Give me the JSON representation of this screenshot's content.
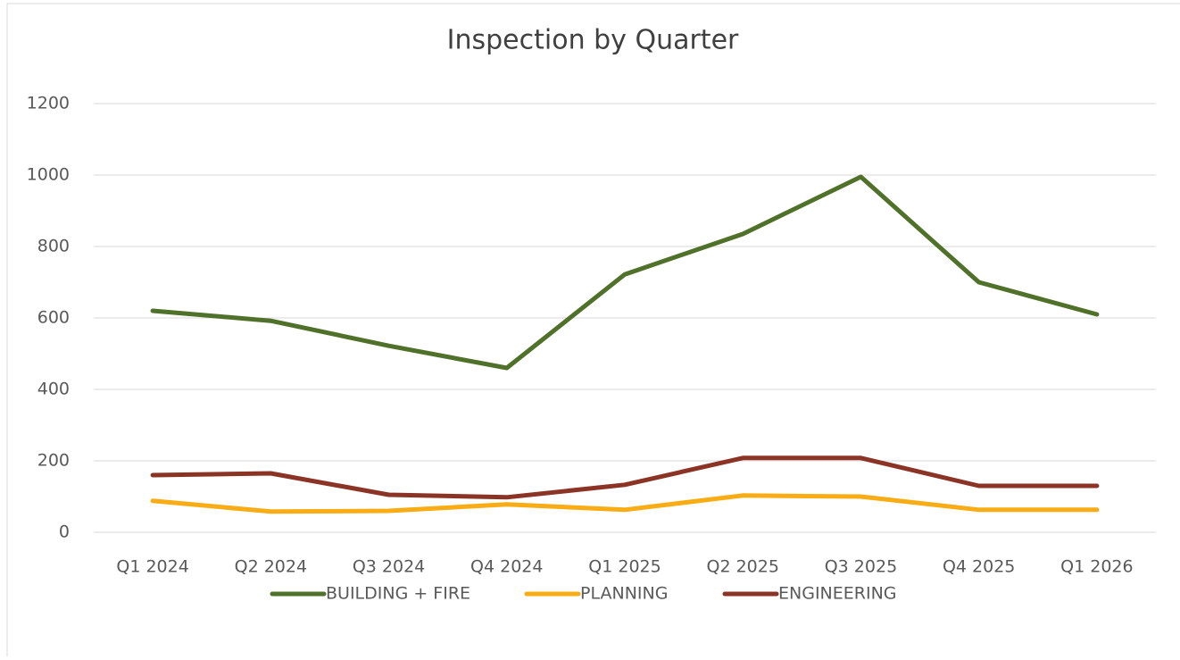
{
  "chart_data": {
    "type": "line",
    "title": "Inspection by Quarter",
    "categories": [
      "Q1 2024",
      "Q2 2024",
      "Q3 2024",
      "Q4 2024",
      "Q1 2025",
      "Q2 2025",
      "Q3 2025",
      "Q4 2025",
      "Q1 2026"
    ],
    "series": [
      {
        "name": "BUILDING + FIRE",
        "color": "#4f7129",
        "values": [
          620,
          592,
          522,
          460,
          722,
          835,
          995,
          700,
          610
        ]
      },
      {
        "name": "PLANNING",
        "color": "#f9ac14",
        "values": [
          88,
          58,
          60,
          78,
          63,
          103,
          100,
          63,
          63
        ]
      },
      {
        "name": "ENGINEERING",
        "color": "#8b3426",
        "values": [
          160,
          165,
          105,
          98,
          133,
          208,
          208,
          130,
          130
        ]
      }
    ],
    "ylim": [
      0,
      1200
    ],
    "yticks": [
      0,
      200,
      400,
      600,
      800,
      1000,
      1200
    ],
    "grid": true,
    "legend": "bottom"
  }
}
